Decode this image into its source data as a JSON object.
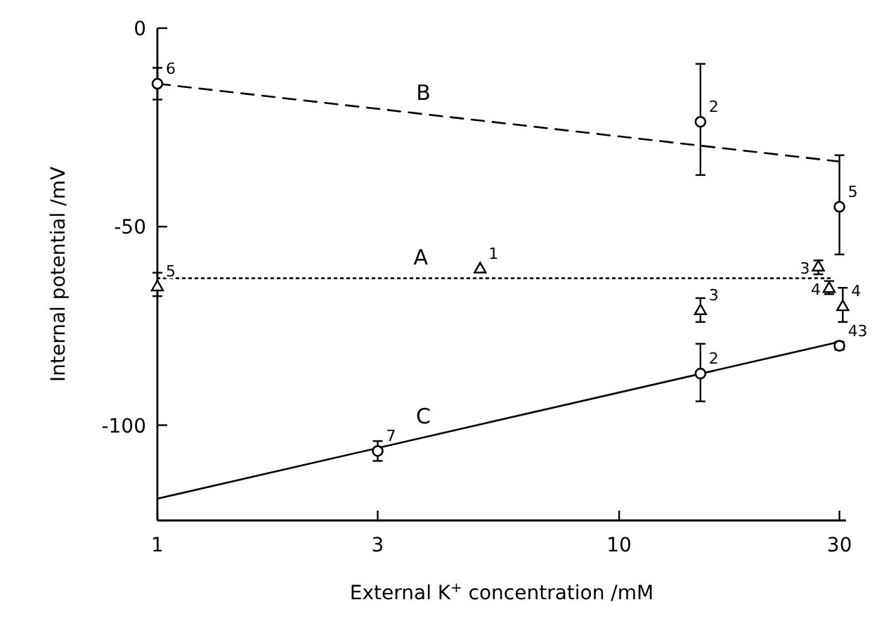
{
  "chart_data": {
    "type": "scatter",
    "xlabel": "External K$^{+}$ concentration /mM",
    "ylabel": "Internal potential /mV",
    "log": "x",
    "xlim": [
      1,
      31
    ],
    "xticks": [
      1,
      3,
      10,
      30
    ],
    "ylim": [
      -124,
      0
    ],
    "yticks": [
      {
        "value": 0,
        "label": "0"
      },
      {
        "value": -50,
        "label": "-50"
      },
      {
        "value": -100,
        "label": "-100"
      }
    ],
    "grid": false,
    "legend": false,
    "series": [
      {
        "type": "line",
        "name": "B",
        "color": "#000000",
        "line_style": "dashed",
        "marker": "none",
        "x": [
          1,
          30
        ],
        "values": [
          -14,
          -33.6
        ]
      },
      {
        "type": "line",
        "name": "A",
        "color": "#000000",
        "line_style": "dotted",
        "marker": "none",
        "x": [
          1,
          29
        ],
        "values": [
          -63,
          -63
        ]
      },
      {
        "type": "line",
        "name": "C",
        "color": "#000000",
        "line_style": "solid",
        "marker": "none",
        "x": [
          1,
          30
        ],
        "values": [
          -118.5,
          -79
        ]
      },
      {
        "color": "#000000",
        "marker": "circle",
        "x": [
          1,
          15,
          30
        ],
        "values": [
          -14,
          -23.6,
          -45
        ],
        "errors": [
          [
            -18,
            -10
          ],
          [
            -37,
            -9
          ],
          [
            -57,
            -32
          ]
        ]
      },
      {
        "color": "#000000",
        "marker": "triangle",
        "x": [
          1,
          5,
          15,
          27,
          28.5,
          30.5
        ],
        "values": [
          -65,
          -60.5,
          -71,
          -60,
          -65.4,
          -70
        ],
        "errors": [
          [
            -67.5,
            -61.6
          ],
          null,
          [
            -74,
            -68
          ],
          [
            -62,
            -58.5
          ],
          [
            -67,
            -63.7
          ],
          [
            -74,
            -65.4
          ]
        ]
      },
      {
        "color": "#000000",
        "marker": "circle",
        "x": [
          3,
          15,
          30
        ],
        "values": [
          -106.5,
          -87,
          -80
        ],
        "errors": [
          [
            -109,
            -104
          ],
          [
            -94,
            -79.5
          ],
          [
            -81,
            -79
          ]
        ]
      }
    ],
    "annotations": [
      {
        "text": "6",
        "x": 1,
        "y": -14
      },
      {
        "text": "2",
        "x": 15,
        "y": -23.6
      },
      {
        "text": "5",
        "x": 30,
        "y": -45
      },
      {
        "text": "5",
        "x": 1,
        "y": -65
      },
      {
        "text": "1",
        "x": 5,
        "y": -60.5
      },
      {
        "text": "3",
        "x": 15,
        "y": -71
      },
      {
        "text": "3",
        "x": 27,
        "y": -60
      },
      {
        "text": "4",
        "x": 28.5,
        "y": -65.4
      },
      {
        "text": "4",
        "x": 30.5,
        "y": -70
      },
      {
        "text": "7",
        "x": 3,
        "y": -106.5
      },
      {
        "text": "2",
        "x": 15,
        "y": -87
      },
      {
        "text": "43",
        "x": 30,
        "y": -80
      }
    ]
  }
}
